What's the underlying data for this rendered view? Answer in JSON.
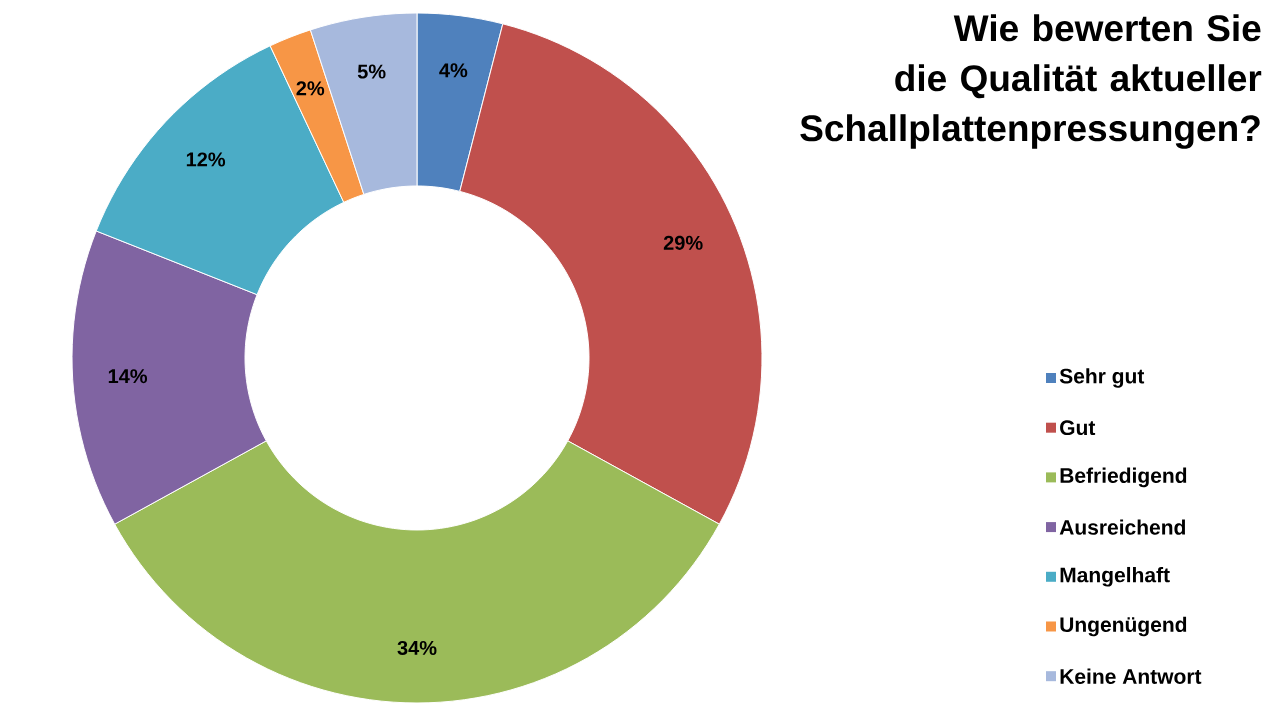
{
  "chart_data": {
    "type": "donut",
    "title": "Wie bewerten Sie die Qualität aktueller Schallplattenpressungen?",
    "categories": [
      "Sehr gut",
      "Gut",
      "Befriedigend",
      "Ausreichend",
      "Mangelhaft",
      "Ungenügend",
      "Keine Antwort"
    ],
    "values": [
      4,
      29,
      34,
      14,
      12,
      2,
      5
    ],
    "value_labels": [
      "4%",
      "29%",
      "34%",
      "14%",
      "12%",
      "2%",
      "5%"
    ],
    "colors": [
      "#4f81bd",
      "#c0504d",
      "#9bbb59",
      "#8064a2",
      "#4bacc6",
      "#f79646",
      "#a7b9dd"
    ],
    "legend": "right"
  }
}
